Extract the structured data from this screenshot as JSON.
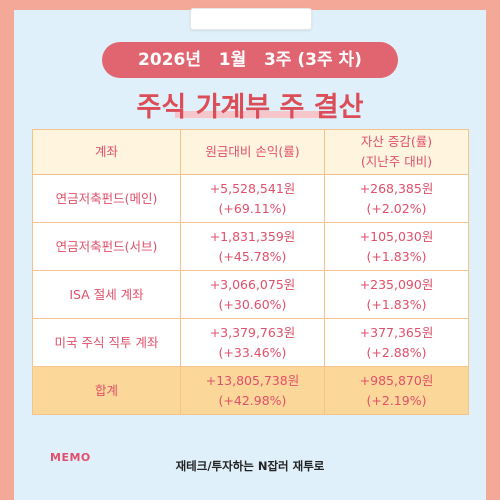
{
  "header": {
    "period": "2026년   1월   3주 (3주 차)",
    "title": "주식 가계부 주 결산"
  },
  "table": {
    "columns": [
      "계좌",
      "원금대비 손익(률)",
      "자산 증감(률)",
      "(지난주 대비)"
    ],
    "rows": [
      {
        "account": "연금저축펀드(메인)",
        "pnl": "+5,528,541원",
        "pnl_rate": "(+69.11%)",
        "change": "+268,385원",
        "change_rate": "(+2.02%)"
      },
      {
        "account": "연금저축펀드(서브)",
        "pnl": "+1,831,359원",
        "pnl_rate": "(+45.78%)",
        "change": "+105,030원",
        "change_rate": "(+1.83%)"
      },
      {
        "account": "ISA 절세 계좌",
        "pnl": "+3,066,075원",
        "pnl_rate": "(+30.60%)",
        "change": "+235,090원",
        "change_rate": "(+1.83%)"
      },
      {
        "account": "미국 주식 직투 계좌",
        "pnl": "+3,379,763원",
        "pnl_rate": "(+33.46%)",
        "change": "+377,365원",
        "change_rate": "(+2.88%)"
      }
    ],
    "total": {
      "account": "합계",
      "pnl": "+13,805,738원",
      "pnl_rate": "(+42.98%)",
      "change": "+985,870원",
      "change_rate": "(+2.19%)"
    }
  },
  "memo_label": "MEMO",
  "footer": "재테크/투자하는 N잡러 재투로",
  "colors": {
    "background": "#f4a898",
    "paper": "#dff0fa",
    "accent": "#e06570",
    "title": "#dc4d58",
    "header_cell": "#fff5df",
    "total_row": "#fbd79a"
  }
}
